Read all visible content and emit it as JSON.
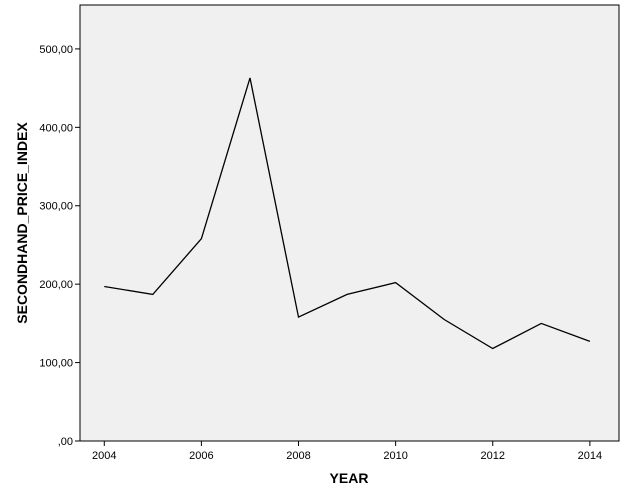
{
  "chart_data": {
    "type": "line",
    "title": "",
    "xlabel": "YEAR",
    "ylabel": "SECONDHAND_PRICE_INDEX",
    "x": [
      2004,
      2005,
      2006,
      2007,
      2008,
      2009,
      2010,
      2011,
      2012,
      2013,
      2014
    ],
    "series": [
      {
        "values": [
          197,
          187,
          258,
          463,
          158,
          187,
          202,
          155,
          118,
          150,
          127
        ]
      }
    ],
    "xlim": [
      2003.5,
      2014.6
    ],
    "ylim": [
      0,
      556
    ],
    "x_ticks": [
      2004,
      2006,
      2008,
      2010,
      2012,
      2014
    ],
    "x_tick_labels": [
      "2004",
      "2006",
      "2008",
      "2010",
      "2012",
      "2014"
    ],
    "y_ticks": [
      0,
      100,
      200,
      300,
      400,
      500
    ],
    "y_tick_labels": [
      ",00",
      "100,00",
      "200,00",
      "300,00",
      "400,00",
      "500,00"
    ],
    "grid": false,
    "legend": "none",
    "colors": {
      "plot_background": "#f0f0f0",
      "line": "#000000"
    }
  }
}
